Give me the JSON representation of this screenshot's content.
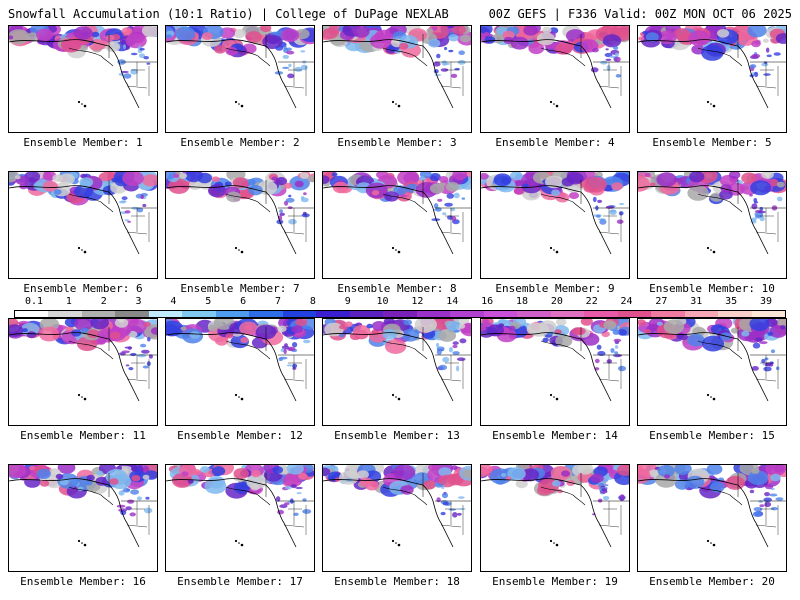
{
  "header": {
    "left": "Snowfall Accumulation (10:1 Ratio) | College of DuPage NEXLAB",
    "right": "00Z GEFS | F336 Valid: 00Z MON OCT 06 2025"
  },
  "panels": [
    {
      "label": "Ensemble Member: 1"
    },
    {
      "label": "Ensemble Member: 2"
    },
    {
      "label": "Ensemble Member: 3"
    },
    {
      "label": "Ensemble Member: 4"
    },
    {
      "label": "Ensemble Member: 5"
    },
    {
      "label": "Ensemble Member: 6"
    },
    {
      "label": "Ensemble Member: 7"
    },
    {
      "label": "Ensemble Member: 8"
    },
    {
      "label": "Ensemble Member: 9"
    },
    {
      "label": "Ensemble Member: 10"
    },
    {
      "label": "Ensemble Member: 11"
    },
    {
      "label": "Ensemble Member: 12"
    },
    {
      "label": "Ensemble Member: 13"
    },
    {
      "label": "Ensemble Member: 14"
    },
    {
      "label": "Ensemble Member: 15"
    },
    {
      "label": "Ensemble Member: 16"
    },
    {
      "label": "Ensemble Member: 17"
    },
    {
      "label": "Ensemble Member: 18"
    },
    {
      "label": "Ensemble Member: 19"
    },
    {
      "label": "Ensemble Member: 20"
    }
  ],
  "colorbar": {
    "labels": [
      "0.1",
      "1",
      "2",
      "3",
      "4",
      "5",
      "6",
      "7",
      "8",
      "9",
      "10",
      "12",
      "14",
      "16",
      "18",
      "20",
      "22",
      "24",
      "27",
      "31",
      "35",
      "39"
    ],
    "colors": [
      "#ffffff",
      "#d8d8d8",
      "#b0b0b0",
      "#888888",
      "#bfe9ff",
      "#80c8f0",
      "#4f9bf0",
      "#2f6de8",
      "#2040e0",
      "#3a1fd0",
      "#5a20c0",
      "#7a20b8",
      "#9a30c8",
      "#b040d0",
      "#c84fd8",
      "#d060c8",
      "#e070c0",
      "#e85aa8",
      "#e0508c",
      "#f07aa0",
      "#f5a7b5",
      "#f8d0c8",
      "#fbe6d8"
    ]
  }
}
